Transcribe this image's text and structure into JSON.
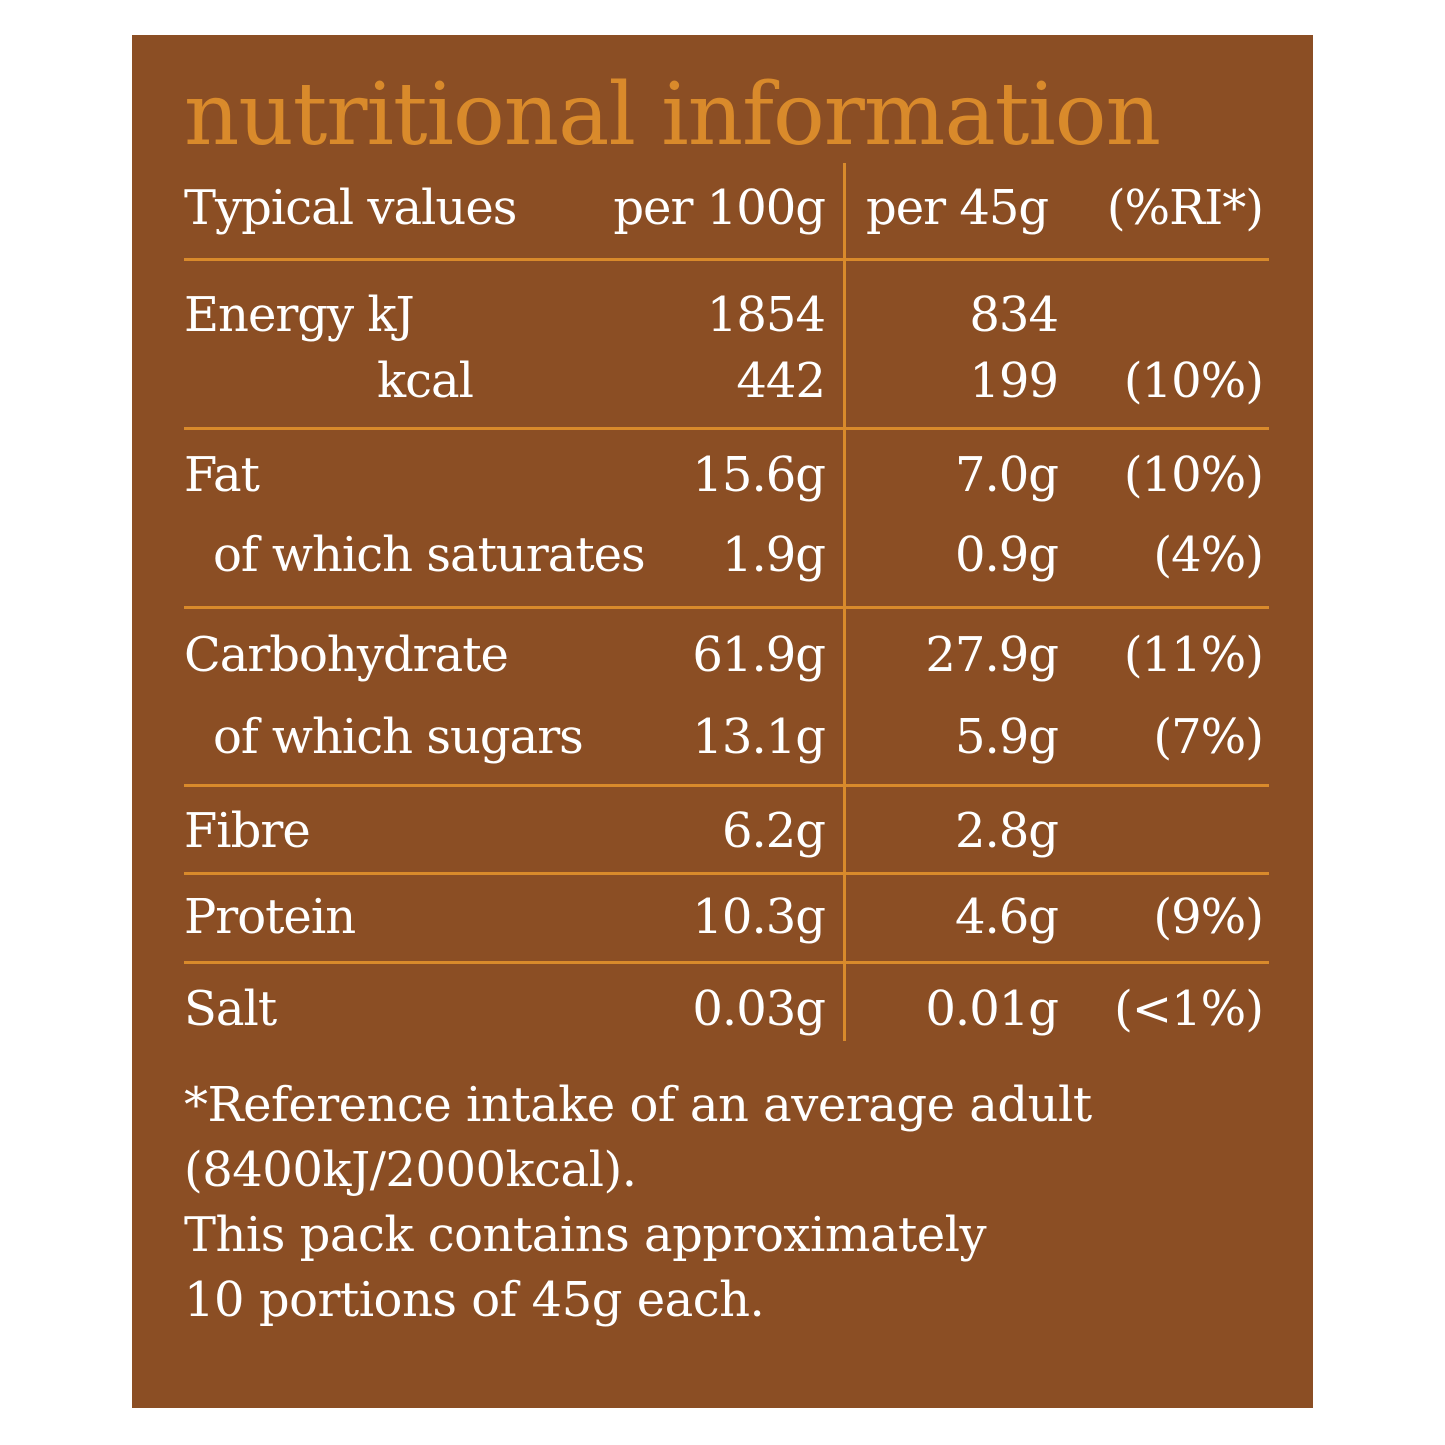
{
  "title": "nutritional information",
  "header": {
    "label": "Typical values",
    "per100": "per 100g",
    "per45": "per 45g",
    "ri": "(%RI*)"
  },
  "rows": [
    {
      "label": "Energy kJ",
      "per100": "1854",
      "per45": "834",
      "ri": ""
    },
    {
      "label": "kcal",
      "per100": "442",
      "per45": "199",
      "ri": "(10%)"
    },
    {
      "label": "Fat",
      "per100": "15.6g",
      "per45": "7.0g",
      "ri": "(10%)"
    },
    {
      "label": "of which saturates",
      "per100": "1.9g",
      "per45": "0.9g",
      "ri": "(4%)"
    },
    {
      "label": "Carbohydrate",
      "per100": "61.9g",
      "per45": "27.9g",
      "ri": "(11%)"
    },
    {
      "label": "of which sugars",
      "per100": "13.1g",
      "per45": "5.9g",
      "ri": "(7%)"
    },
    {
      "label": "Fibre",
      "per100": "6.2g",
      "per45": "2.8g",
      "ri": ""
    },
    {
      "label": "Protein",
      "per100": "10.3g",
      "per45": "4.6g",
      "ri": "(9%)"
    },
    {
      "label": "Salt",
      "per100": "0.03g",
      "per45": "0.01g",
      "ri": "(<1%)"
    }
  ],
  "footer": [
    "*Reference intake of an average adult",
    "(8400kJ/2000kcal).",
    "This pack contains approximately",
    "10 portions of 45g each."
  ],
  "colors": {
    "panel": "#8b4e24",
    "accent": "#d98a2b",
    "text": "#ffffff"
  }
}
